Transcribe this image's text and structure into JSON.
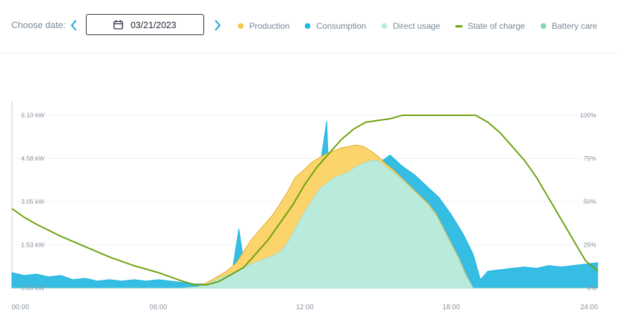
{
  "header": {
    "choose_label": "Choose date:",
    "date_value": "03/21/2023"
  },
  "icons": {
    "prev": "chevron-left-icon",
    "next": "chevron-right-icon",
    "calendar": "calendar-icon"
  },
  "colors": {
    "production": "#f7c948",
    "production_fill": "#fbd46b",
    "consumption": "#1fb6e0",
    "direct_usage": "#b9ebdd",
    "state_of_charge": "#6aa10a",
    "battery_care": "#7fd9b6",
    "accent": "#1aa0d8"
  },
  "legend": [
    {
      "label": "Production",
      "marker": "dot",
      "color": "#f7c948"
    },
    {
      "label": "Consumption",
      "marker": "dot",
      "color": "#1fb6e0"
    },
    {
      "label": "Direct usage",
      "marker": "dot",
      "color": "#b9ebdd"
    },
    {
      "label": "State of charge",
      "marker": "line",
      "color": "#6aa10a"
    },
    {
      "label": "Battery care",
      "marker": "dot",
      "color": "#7fd9b6"
    }
  ],
  "chart_data": {
    "type": "area",
    "title": "",
    "xlabel": "",
    "ylabel": "",
    "xlim": [
      0,
      24
    ],
    "ylim": [
      0,
      6.1
    ],
    "y2lim": [
      0,
      100
    ],
    "grid": true,
    "legend_position": "top",
    "x_ticks": [
      "00:00",
      "06:00",
      "12:00",
      "18:00",
      "24:00"
    ],
    "y_ticks": [
      "0.00 kW",
      "1.53 kW",
      "3.05 kW",
      "4.58 kW",
      "6.10 kW"
    ],
    "y2_ticks": [
      "0%",
      "25%",
      "50%",
      "75%",
      "100%"
    ],
    "series": [
      {
        "name": "Production",
        "unit": "kW",
        "x": [
          0,
          6.9,
          7.6,
          8.0,
          8.4,
          8.8,
          9.2,
          9.5,
          9.8,
          10.1,
          10.4,
          10.7,
          11.0,
          11.3,
          11.6,
          12.0,
          12.3,
          12.6,
          12.9,
          13.2,
          13.5,
          13.8,
          14.1,
          14.4,
          14.7,
          15.0,
          15.3,
          15.6,
          15.9,
          16.2,
          16.5,
          16.8,
          17.1,
          17.4,
          17.7,
          18.0,
          18.3,
          18.6,
          18.9,
          24
        ],
        "y": [
          0,
          0,
          0.05,
          0.2,
          0.4,
          0.6,
          0.9,
          1.3,
          1.7,
          2.0,
          2.3,
          2.6,
          3.0,
          3.4,
          3.9,
          4.2,
          4.45,
          4.6,
          4.75,
          4.85,
          4.95,
          5.0,
          5.05,
          5.0,
          4.85,
          4.65,
          4.4,
          4.2,
          3.95,
          3.7,
          3.45,
          3.2,
          2.95,
          2.6,
          2.1,
          1.6,
          1.1,
          0.5,
          0,
          0
        ]
      },
      {
        "name": "Direct usage",
        "unit": "kW",
        "x": [
          0,
          6.9,
          7.6,
          8.0,
          8.4,
          8.8,
          9.2,
          9.5,
          9.8,
          10.1,
          10.4,
          10.7,
          11.0,
          11.3,
          11.6,
          12.0,
          12.3,
          12.6,
          12.9,
          13.2,
          13.5,
          13.8,
          14.1,
          14.4,
          14.7,
          15.0,
          15.3,
          15.6,
          15.9,
          16.2,
          16.5,
          16.8,
          17.1,
          17.4,
          17.7,
          18.0,
          18.3,
          18.6,
          18.9,
          24
        ],
        "y": [
          0,
          0,
          0.05,
          0.15,
          0.3,
          0.45,
          0.6,
          0.75,
          0.85,
          0.95,
          1.05,
          1.15,
          1.3,
          1.6,
          2.1,
          2.7,
          3.1,
          3.5,
          3.7,
          3.9,
          4.0,
          4.1,
          4.3,
          4.4,
          4.5,
          4.5,
          4.3,
          4.1,
          3.9,
          3.65,
          3.4,
          3.15,
          2.9,
          2.55,
          2.05,
          1.55,
          1.05,
          0.45,
          0,
          0
        ]
      },
      {
        "name": "Consumption",
        "unit": "kW",
        "x": [
          0,
          0.5,
          1.0,
          1.5,
          2.0,
          2.5,
          3.0,
          3.5,
          4.0,
          4.5,
          5.0,
          5.5,
          6.0,
          6.5,
          7.0,
          7.5,
          8.0,
          8.5,
          9.0,
          9.3,
          9.5,
          10.0,
          10.5,
          11.0,
          11.5,
          12.0,
          12.5,
          12.9,
          13.0,
          13.5,
          14.0,
          14.5,
          15.0,
          15.5,
          16.0,
          16.5,
          17.0,
          17.5,
          18.0,
          18.5,
          18.9,
          19.2,
          19.5,
          20.0,
          20.5,
          21.0,
          21.5,
          22.0,
          22.5,
          23.0,
          23.5,
          24.0
        ],
        "y": [
          0.55,
          0.45,
          0.5,
          0.4,
          0.45,
          0.3,
          0.35,
          0.25,
          0.3,
          0.25,
          0.3,
          0.25,
          0.3,
          0.25,
          0.2,
          0.15,
          0.15,
          0.25,
          0.45,
          2.1,
          0.9,
          1.1,
          1.0,
          1.3,
          2.0,
          3.0,
          3.6,
          5.9,
          3.5,
          3.9,
          4.2,
          4.6,
          4.4,
          4.7,
          4.3,
          4.0,
          3.6,
          3.2,
          2.6,
          1.9,
          1.2,
          0.3,
          0.6,
          0.65,
          0.7,
          0.75,
          0.7,
          0.8,
          0.75,
          0.8,
          0.85,
          0.9
        ]
      },
      {
        "name": "State of charge",
        "unit": "%",
        "axis": "right",
        "x": [
          0,
          0.5,
          1.0,
          2.0,
          3.0,
          4.0,
          5.0,
          6.0,
          7.0,
          7.5,
          8.0,
          8.5,
          9.0,
          9.5,
          10.0,
          10.5,
          11.0,
          11.5,
          12.0,
          12.5,
          13.0,
          13.5,
          14.0,
          14.5,
          15.0,
          15.5,
          16.0,
          16.5,
          17.0,
          18.0,
          18.5,
          19.0,
          19.5,
          20.0,
          20.5,
          21.0,
          21.5,
          22.0,
          22.5,
          23.0,
          23.5,
          24.0
        ],
        "y": [
          46,
          41,
          37,
          30,
          24,
          18,
          13,
          9,
          4,
          2,
          2,
          4,
          8,
          12,
          20,
          28,
          38,
          48,
          60,
          70,
          78,
          86,
          92,
          96,
          97,
          98,
          100,
          100,
          100,
          100,
          100,
          100,
          96,
          90,
          82,
          74,
          64,
          52,
          40,
          28,
          16,
          10
        ]
      }
    ]
  }
}
